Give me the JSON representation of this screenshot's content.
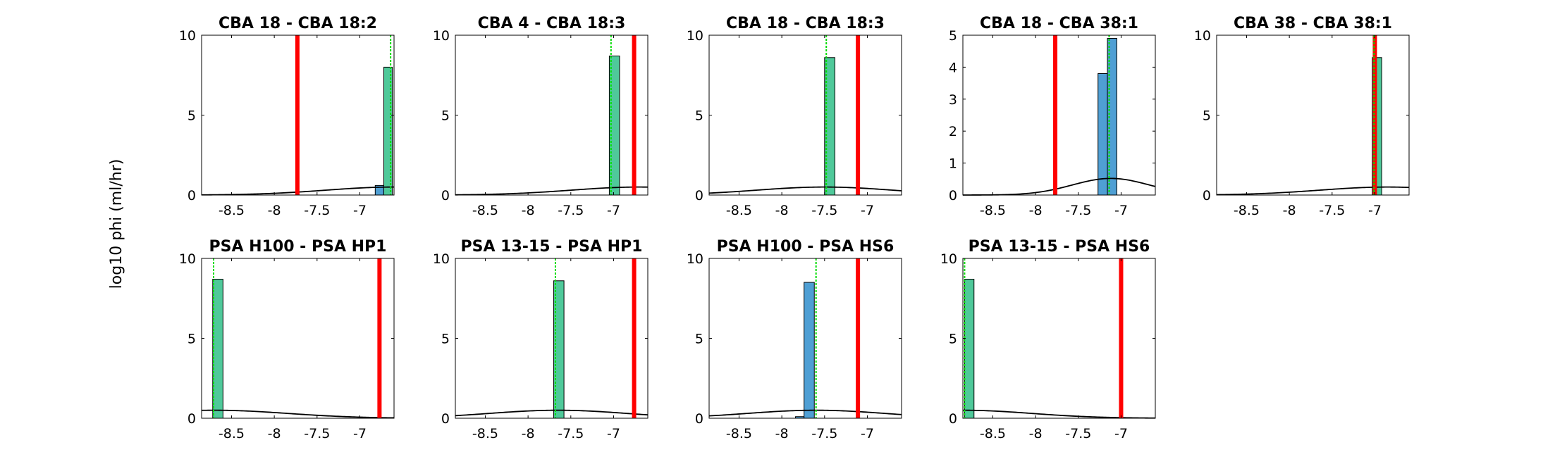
{
  "figure": {
    "ylabel": "log10 phi (ml/hr)"
  },
  "colors": {
    "bar": "#4f9fd4",
    "bar_highlight": "#4fc99a",
    "red_line": "#ff0000",
    "green_line": "#00dd00",
    "curve": "#000000"
  },
  "chart_data": [
    {
      "type": "bar",
      "title": "CBA 18 - CBA 18:2",
      "xlim": [
        -8.85,
        -6.6
      ],
      "ylim": [
        0,
        10
      ],
      "yticks": [
        0,
        5,
        10
      ],
      "xticks": [
        -8.5,
        -8,
        -7.5,
        -7
      ],
      "xtick_labels": [
        "-8.5",
        "-8",
        "-7.5",
        "-7"
      ],
      "bars": [
        {
          "x0": -6.82,
          "x1": -6.72,
          "value": 0.6,
          "highlight": false
        },
        {
          "x0": -6.72,
          "x1": -6.62,
          "value": 8.0,
          "highlight": true
        }
      ],
      "red_line": -7.73,
      "green_line": -6.64,
      "curve": {
        "mu": -6.6,
        "sigma": 0.8,
        "peak": 0.5
      }
    },
    {
      "type": "bar",
      "title": "CBA 4 - CBA 18:3",
      "xlim": [
        -8.85,
        -6.6
      ],
      "ylim": [
        0,
        10
      ],
      "yticks": [
        0,
        5,
        10
      ],
      "xticks": [
        -8.5,
        -8,
        -7.5,
        -7
      ],
      "xtick_labels": [
        "-8.5",
        "-8",
        "-7.5",
        "-7"
      ],
      "bars": [
        {
          "x0": -7.05,
          "x1": -6.93,
          "value": 8.7,
          "highlight": true
        }
      ],
      "red_line": -6.76,
      "green_line": -7.03,
      "curve": {
        "mu": -6.7,
        "sigma": 0.8,
        "peak": 0.5
      }
    },
    {
      "type": "bar",
      "title": "CBA 18 - CBA 18:3",
      "xlim": [
        -8.85,
        -6.6
      ],
      "ylim": [
        0,
        10
      ],
      "yticks": [
        0,
        5,
        10
      ],
      "xticks": [
        -8.5,
        -8,
        -7.5,
        -7
      ],
      "xtick_labels": [
        "-8.5",
        "-8",
        "-7.5",
        "-7"
      ],
      "bars": [
        {
          "x0": -7.5,
          "x1": -7.38,
          "value": 8.6,
          "highlight": true
        }
      ],
      "red_line": -7.11,
      "green_line": -7.48,
      "curve": {
        "mu": -7.5,
        "sigma": 0.8,
        "peak": 0.5
      }
    },
    {
      "type": "bar",
      "title": "CBA 18 - CBA 38:1",
      "xlim": [
        -8.85,
        -6.6
      ],
      "ylim": [
        0,
        5
      ],
      "yticks": [
        0,
        1,
        2,
        3,
        4,
        5
      ],
      "xticks": [
        -8.5,
        -8,
        -7.5,
        -7
      ],
      "xtick_labels": [
        "-8.5",
        "-8",
        "-7.5",
        "-7"
      ],
      "bars": [
        {
          "x0": -7.27,
          "x1": -7.16,
          "value": 3.8,
          "highlight": false
        },
        {
          "x0": -7.16,
          "x1": -7.05,
          "value": 4.9,
          "highlight": false
        }
      ],
      "red_line": -7.77,
      "green_line": -7.14,
      "curve": {
        "mu": -7.12,
        "sigma": 0.45,
        "peak": 0.52
      }
    },
    {
      "type": "bar",
      "title": "CBA 38 - CBA 38:1",
      "xlim": [
        -8.85,
        -6.6
      ],
      "ylim": [
        0,
        10
      ],
      "yticks": [
        0,
        5,
        10
      ],
      "xticks": [
        -8.5,
        -8,
        -7.5,
        -7
      ],
      "xtick_labels": [
        "-8.5",
        "-8",
        "-7.5",
        "-7"
      ],
      "bars": [
        {
          "x0": -7.03,
          "x1": -6.92,
          "value": 8.6,
          "highlight": true
        }
      ],
      "red_line": -7.0,
      "green_line": -7.01,
      "curve": {
        "mu": -6.85,
        "sigma": 0.8,
        "peak": 0.5
      }
    },
    {
      "type": "bar",
      "title": "PSA H100 - PSA HP1",
      "xlim": [
        -8.85,
        -6.6
      ],
      "ylim": [
        0,
        10
      ],
      "yticks": [
        0,
        5,
        10
      ],
      "xticks": [
        -8.5,
        -8,
        -7.5,
        -7
      ],
      "xtick_labels": [
        "-8.5",
        "-8",
        "-7.5",
        "-7"
      ],
      "bars": [
        {
          "x0": -8.72,
          "x1": -8.6,
          "value": 8.7,
          "highlight": true
        }
      ],
      "red_line": -6.77,
      "green_line": -8.71,
      "curve": {
        "mu": -8.7,
        "sigma": 0.85,
        "peak": 0.5
      }
    },
    {
      "type": "bar",
      "title": "PSA 13-15 - PSA HP1",
      "xlim": [
        -8.85,
        -6.6
      ],
      "ylim": [
        0,
        10
      ],
      "yticks": [
        0,
        5,
        10
      ],
      "xticks": [
        -8.5,
        -8,
        -7.5,
        -7
      ],
      "xtick_labels": [
        "-8.5",
        "-8",
        "-7.5",
        "-7"
      ],
      "bars": [
        {
          "x0": -7.7,
          "x1": -7.58,
          "value": 8.6,
          "highlight": true
        }
      ],
      "red_line": -6.76,
      "green_line": -7.68,
      "curve": {
        "mu": -7.65,
        "sigma": 0.8,
        "peak": 0.5
      }
    },
    {
      "type": "bar",
      "title": "PSA H100 - PSA HS6",
      "xlim": [
        -8.85,
        -6.6
      ],
      "ylim": [
        0,
        10
      ],
      "yticks": [
        0,
        5,
        10
      ],
      "xticks": [
        -8.5,
        -8,
        -7.5,
        -7
      ],
      "xtick_labels": [
        "-8.5",
        "-8",
        "-7.5",
        "-7"
      ],
      "bars": [
        {
          "x0": -7.84,
          "x1": -7.74,
          "value": 0.1,
          "highlight": false
        },
        {
          "x0": -7.74,
          "x1": -7.62,
          "value": 8.5,
          "highlight": false
        }
      ],
      "red_line": -7.11,
      "green_line": -7.6,
      "curve": {
        "mu": -7.6,
        "sigma": 0.8,
        "peak": 0.5
      }
    },
    {
      "type": "bar",
      "title": "PSA 13-15 - PSA HS6",
      "xlim": [
        -8.85,
        -6.6
      ],
      "ylim": [
        0,
        10
      ],
      "yticks": [
        0,
        5,
        10
      ],
      "xticks": [
        -8.5,
        -8,
        -7.5,
        -7
      ],
      "xtick_labels": [
        "-8.5",
        "-8",
        "-7.5",
        "-7"
      ],
      "bars": [
        {
          "x0": -8.83,
          "x1": -8.72,
          "value": 8.7,
          "highlight": true
        }
      ],
      "red_line": -7.0,
      "green_line": -8.83,
      "curve": {
        "mu": -8.85,
        "sigma": 0.8,
        "peak": 0.5
      }
    }
  ]
}
